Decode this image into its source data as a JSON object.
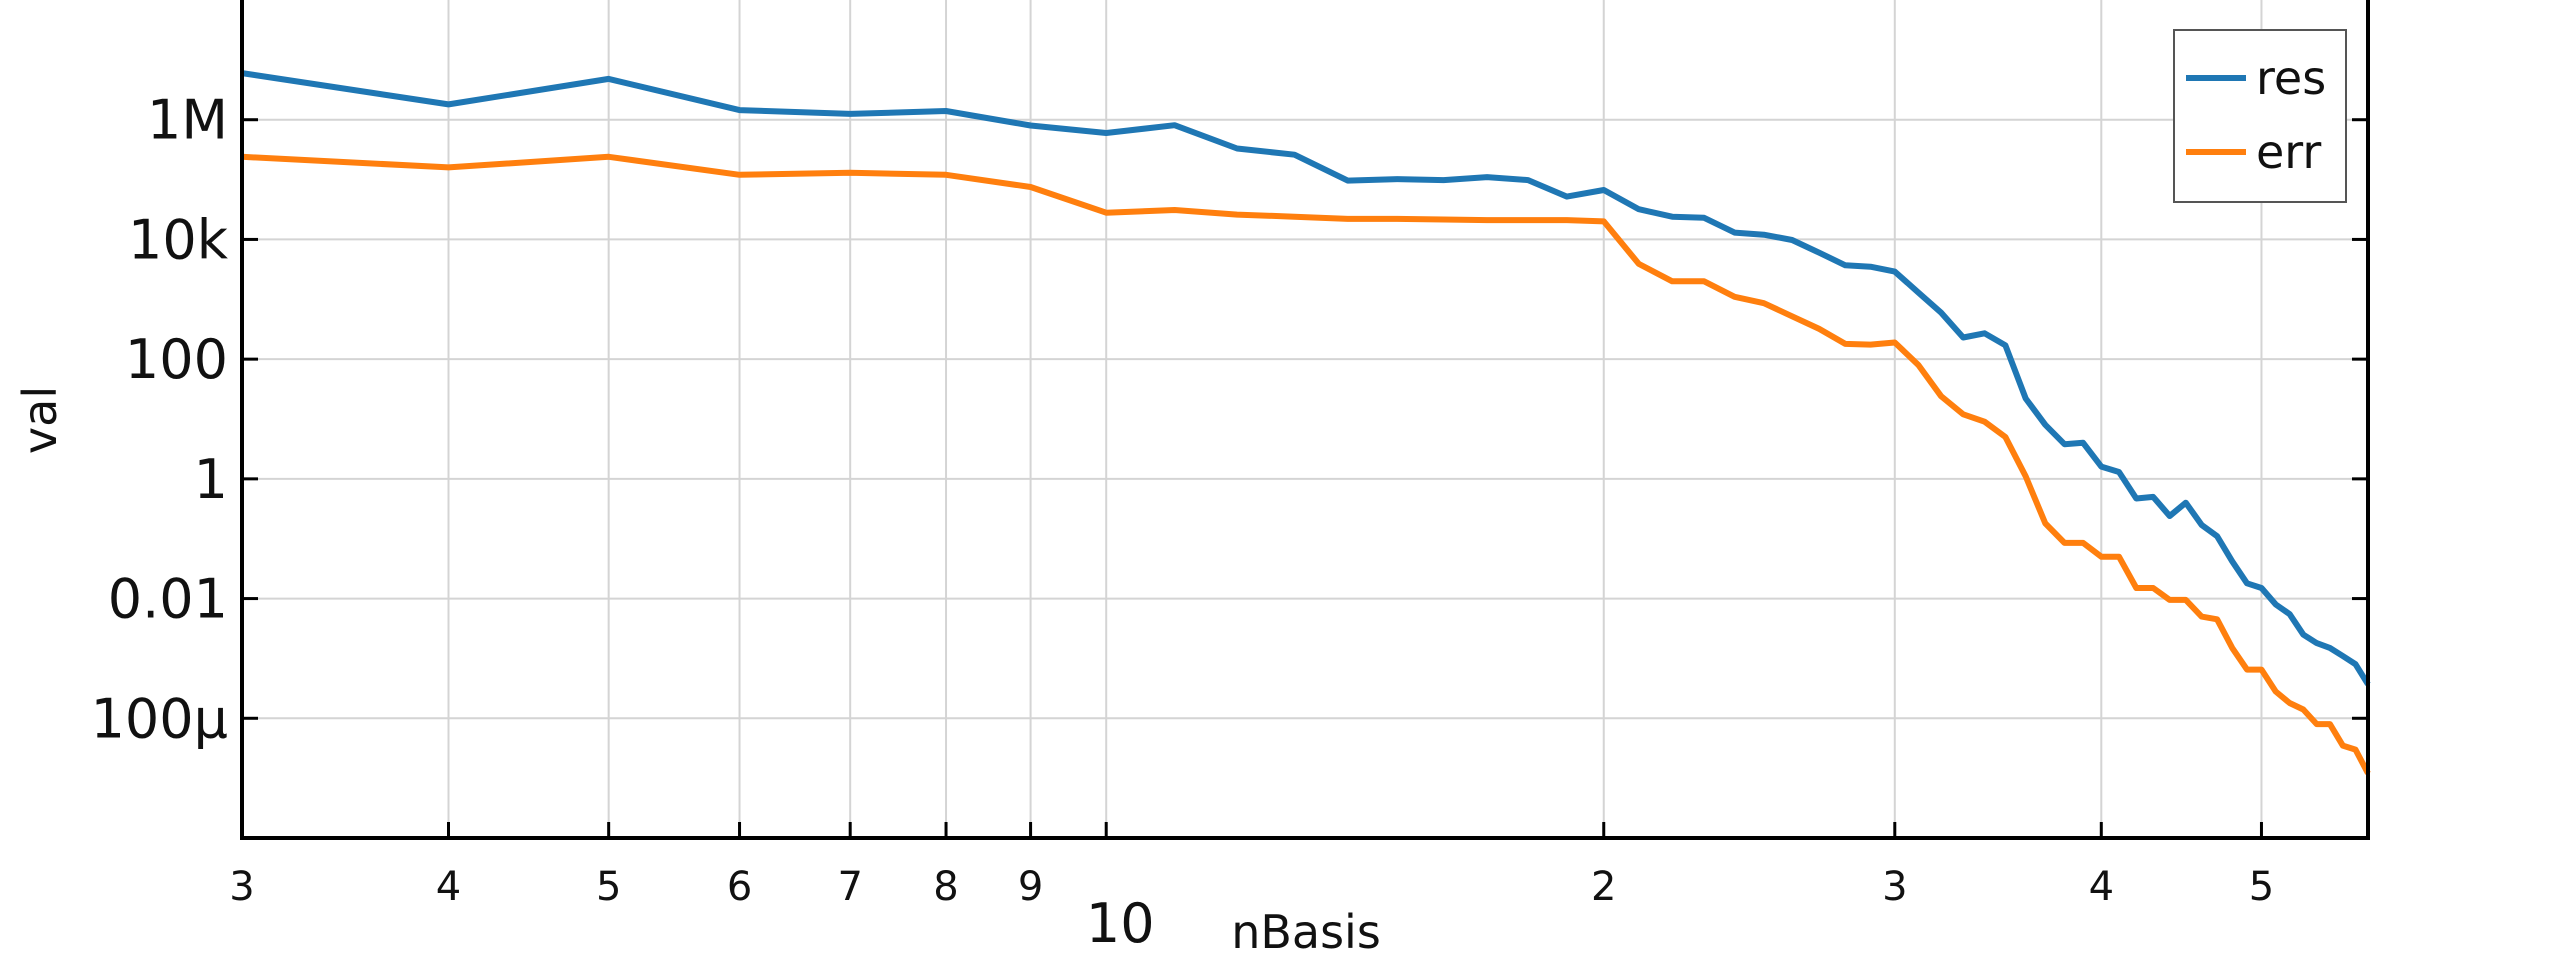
{
  "chart_data": {
    "type": "line",
    "xlabel": "nBasis",
    "ylabel": "val",
    "x_scale": "log",
    "y_scale": "log",
    "xlim": [
      30,
      580
    ],
    "ylim": [
      1e-06,
      100000000
    ],
    "x_ticks": [
      {
        "value": 30,
        "label": "3"
      },
      {
        "value": 40,
        "label": "4"
      },
      {
        "value": 50,
        "label": "5"
      },
      {
        "value": 60,
        "label": "6"
      },
      {
        "value": 70,
        "label": "7"
      },
      {
        "value": 80,
        "label": "8"
      },
      {
        "value": 90,
        "label": "9"
      },
      {
        "value": 200,
        "label": "2"
      },
      {
        "value": 300,
        "label": "3"
      },
      {
        "value": 400,
        "label": "4"
      },
      {
        "value": 500,
        "label": "5"
      }
    ],
    "x_decade_label": {
      "value": 100,
      "label": "10"
    },
    "y_ticks": [
      {
        "value": 1000000,
        "label": "1M"
      },
      {
        "value": 10000,
        "label": "10k"
      },
      {
        "value": 100,
        "label": "100"
      },
      {
        "value": 1,
        "label": "1"
      },
      {
        "value": 0.01,
        "label": "0.01"
      },
      {
        "value": 0.0001,
        "label": "100μ"
      }
    ],
    "grid": true,
    "legend_position": "top-right",
    "series": [
      {
        "name": "res",
        "color": "#1f77b4",
        "points": [
          [
            30,
            6000000
          ],
          [
            40,
            1800000
          ],
          [
            50,
            4800000
          ],
          [
            60,
            1450000
          ],
          [
            70,
            1250000
          ],
          [
            80,
            1400000
          ],
          [
            90,
            800000
          ],
          [
            100,
            600000
          ],
          [
            110,
            810000
          ],
          [
            120,
            330000
          ],
          [
            130,
            260000
          ],
          [
            140,
            96000
          ],
          [
            150,
            102000
          ],
          [
            160,
            98000
          ],
          [
            170,
            110000
          ],
          [
            180,
            98000
          ],
          [
            190,
            52000
          ],
          [
            200,
            67000
          ],
          [
            210,
            32000
          ],
          [
            220,
            24000
          ],
          [
            230,
            23000
          ],
          [
            240,
            13000
          ],
          [
            250,
            12000
          ],
          [
            260,
            9800
          ],
          [
            270,
            6000
          ],
          [
            280,
            3700
          ],
          [
            290,
            3500
          ],
          [
            300,
            2900
          ],
          [
            310,
            1300
          ],
          [
            320,
            600
          ],
          [
            330,
            230
          ],
          [
            340,
            270
          ],
          [
            350,
            170
          ],
          [
            360,
            22
          ],
          [
            370,
            8
          ],
          [
            380,
            3.8
          ],
          [
            390,
            4
          ],
          [
            400,
            1.6
          ],
          [
            410,
            1.3
          ],
          [
            420,
            0.47
          ],
          [
            430,
            0.5
          ],
          [
            440,
            0.24
          ],
          [
            450,
            0.4
          ],
          [
            460,
            0.17
          ],
          [
            470,
            0.11
          ],
          [
            480,
            0.042
          ],
          [
            490,
            0.018
          ],
          [
            500,
            0.015
          ],
          [
            510,
            0.008
          ],
          [
            520,
            0.0055
          ],
          [
            530,
            0.0025
          ],
          [
            540,
            0.0018
          ],
          [
            550,
            0.0015
          ],
          [
            560,
            0.0011
          ],
          [
            570,
            0.0008
          ],
          [
            580,
            0.00037
          ]
        ]
      },
      {
        "name": "err",
        "color": "#ff7f0e",
        "points": [
          [
            30,
            240000
          ],
          [
            40,
            160000
          ],
          [
            50,
            240000
          ],
          [
            60,
            120000
          ],
          [
            70,
            130000
          ],
          [
            80,
            120000
          ],
          [
            90,
            75000
          ],
          [
            100,
            28000
          ],
          [
            110,
            31000
          ],
          [
            120,
            26000
          ],
          [
            130,
            24000
          ],
          [
            140,
            22000
          ],
          [
            150,
            22000
          ],
          [
            160,
            21500
          ],
          [
            170,
            21000
          ],
          [
            180,
            21000
          ],
          [
            190,
            21000
          ],
          [
            200,
            20000
          ],
          [
            210,
            3900
          ],
          [
            220,
            2000
          ],
          [
            230,
            2000
          ],
          [
            240,
            1100
          ],
          [
            250,
            860
          ],
          [
            260,
            520
          ],
          [
            270,
            320
          ],
          [
            280,
            180
          ],
          [
            290,
            175
          ],
          [
            300,
            190
          ],
          [
            310,
            80
          ],
          [
            320,
            24
          ],
          [
            330,
            12
          ],
          [
            340,
            9
          ],
          [
            350,
            5
          ],
          [
            360,
            1.1
          ],
          [
            370,
            0.18
          ],
          [
            380,
            0.085
          ],
          [
            390,
            0.085
          ],
          [
            400,
            0.05
          ],
          [
            410,
            0.05
          ],
          [
            420,
            0.015
          ],
          [
            430,
            0.015
          ],
          [
            440,
            0.0095
          ],
          [
            450,
            0.0095
          ],
          [
            460,
            0.005
          ],
          [
            470,
            0.0045
          ],
          [
            480,
            0.0015
          ],
          [
            490,
            0.00065
          ],
          [
            500,
            0.00065
          ],
          [
            510,
            0.00028
          ],
          [
            520,
            0.00018
          ],
          [
            530,
            0.00014
          ],
          [
            540,
            8e-05
          ],
          [
            550,
            8e-05
          ],
          [
            560,
            3.5e-05
          ],
          [
            570,
            3e-05
          ],
          [
            580,
            1.2e-05
          ]
        ]
      }
    ]
  }
}
